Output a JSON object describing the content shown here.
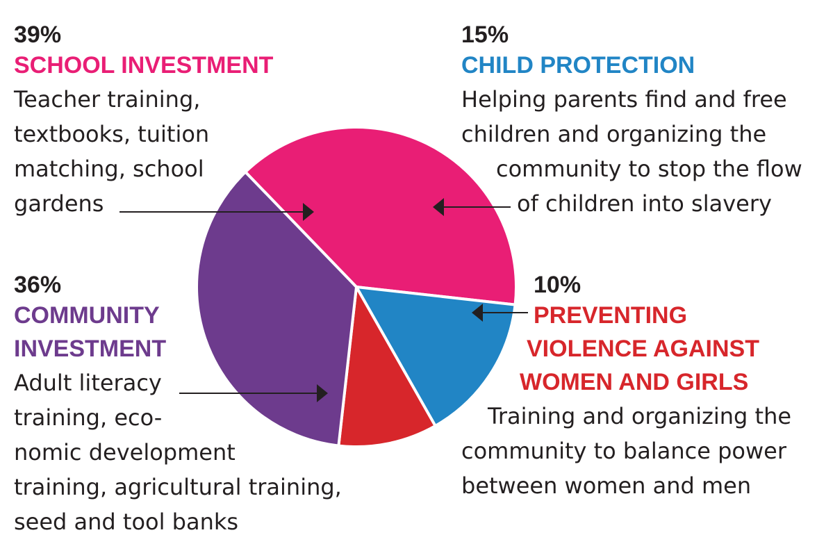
{
  "chart_data": {
    "type": "pie",
    "slices": [
      {
        "key": "school",
        "percent_label": "39%",
        "value": 39,
        "label_lines": [
          "SCHOOL INVESTMENT"
        ],
        "description_lines": [
          "Teacher training,",
          "textbooks, tuition",
          "matching, school",
          "gardens"
        ],
        "color": "#e91e75"
      },
      {
        "key": "child",
        "percent_label": "15%",
        "value": 15,
        "label_lines": [
          "CHILD PROTECTION"
        ],
        "description_lines": [
          "Helping parents find and free",
          "children and organizing the",
          "community to stop the flow",
          "of children into slavery"
        ],
        "color": "#2185c5"
      },
      {
        "key": "violence",
        "percent_label": "10%",
        "value": 10,
        "label_lines": [
          "PREVENTING",
          "VIOLENCE AGAINST",
          "WOMEN AND GIRLS"
        ],
        "description_lines": [
          "Training and organizing the",
          "community to balance power",
          "between women and men"
        ],
        "color": "#d7262b"
      },
      {
        "key": "community",
        "percent_label": "36%",
        "value": 36,
        "label_lines": [
          "COMMUNITY",
          "INVESTMENT"
        ],
        "description_lines": [
          "Adult literacy",
          "training, eco-",
          "nomic development",
          "training, agricultural training,",
          "seed and tool banks"
        ],
        "color": "#6d3b8d"
      }
    ]
  }
}
